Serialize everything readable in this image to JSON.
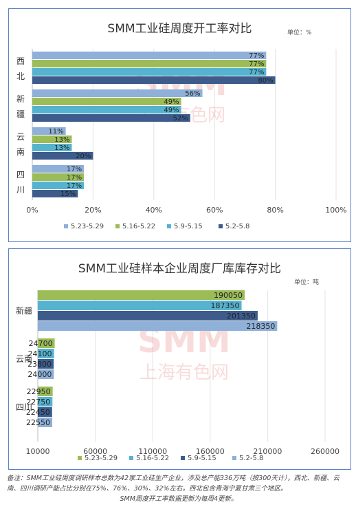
{
  "colors": {
    "s1": "#8fb0d8",
    "s2": "#9cbc58",
    "s3": "#56b3cf",
    "s4": "#3d5c8c",
    "grid": "#e3e3e3",
    "watermark": "#e26060"
  },
  "watermark": {
    "logo": "SMM",
    "sub": "上海有色网"
  },
  "chart_data": [
    {
      "type": "bar",
      "orientation": "horizontal",
      "title": "SMM工业硅周度开工率对比",
      "unit": "单位：%",
      "categories": [
        "西北",
        "新疆",
        "云南",
        "四川"
      ],
      "series": [
        {
          "name": "5.23-5.29",
          "values": [
            77,
            56,
            11,
            17
          ],
          "labels": [
            "77%",
            "56%",
            "11%",
            "17%"
          ]
        },
        {
          "name": "5.16-5.22",
          "values": [
            77,
            49,
            13,
            17
          ],
          "labels": [
            "77%",
            "49%",
            "13%",
            "17%"
          ]
        },
        {
          "name": "5.9-5.15",
          "values": [
            77,
            49,
            13,
            17
          ],
          "labels": [
            "77%",
            "49%",
            "13%",
            "17%"
          ]
        },
        {
          "name": "5.2-5.8",
          "values": [
            80,
            52,
            20,
            15
          ],
          "labels": [
            "80%",
            "52%",
            "20%",
            "15%"
          ]
        }
      ],
      "xlim": [
        0,
        100
      ],
      "xticks": [
        "0%",
        "20%",
        "40%",
        "60%",
        "80%",
        "100%"
      ],
      "legend_position": "bottom",
      "grid": true
    },
    {
      "type": "bar",
      "orientation": "horizontal",
      "title": "SMM工业硅样本企业周度厂库库存对比",
      "unit": "单位：吨",
      "categories": [
        "新疆",
        "云南",
        "四川"
      ],
      "series": [
        {
          "name": "5.23-5.29",
          "values": [
            190050,
            24700,
            22950
          ]
        },
        {
          "name": "5.16-5.22",
          "values": [
            187350,
            24100,
            22750
          ]
        },
        {
          "name": "5.9-5.15",
          "values": [
            201350,
            23800,
            22450
          ]
        },
        {
          "name": "5.2-5.8",
          "values": [
            218350,
            24000,
            22550
          ]
        }
      ],
      "xlim": [
        10000,
        260000
      ],
      "xticks": [
        "10000",
        "60000",
        "110000",
        "160000",
        "210000",
        "260000"
      ],
      "legend_position": "bottom",
      "grid": true
    }
  ],
  "notes": {
    "line1": "备注：SMM工业硅周度调研样本总数为42家工业硅生产企业，涉及总产能336万吨（按300天计），西北、新疆、云南、四川调研产能占比分别在75%、76%、30%、32%左右。西北包含青海宁夏甘肃三个地区。",
    "line2": "SMM周度开工率数据更新为每周4更新。"
  }
}
